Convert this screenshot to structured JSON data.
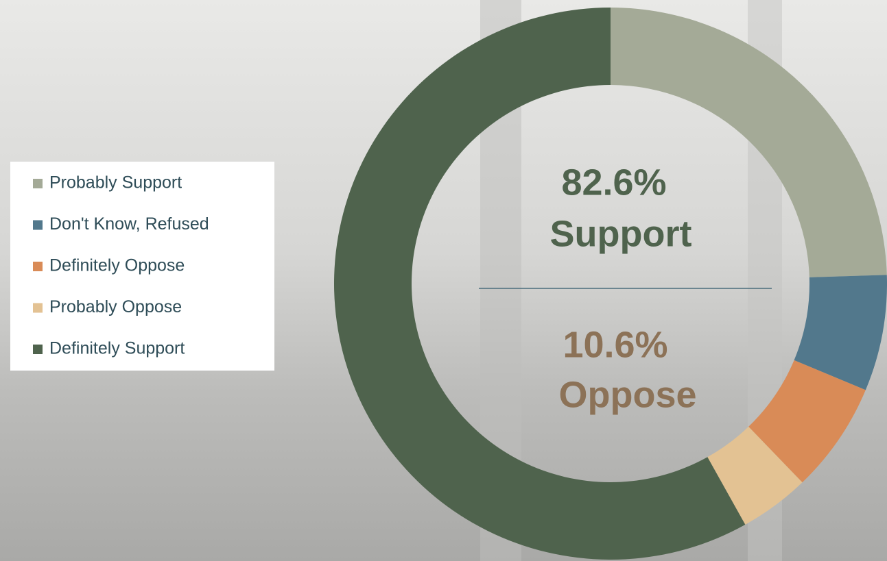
{
  "chart_data": {
    "type": "donut",
    "categories": [
      "Probably Support",
      "Don't Know, Refused",
      "Definitely Oppose",
      "Probably Oppose",
      "Definitely Support"
    ],
    "values": [
      24.5,
      6.8,
      6.5,
      4.1,
      58.1
    ],
    "colors": [
      "#a4aa97",
      "#52788c",
      "#d98b57",
      "#e3c293",
      "#4f634d"
    ],
    "legend": "left",
    "center_text": {
      "support_percent": "82.6%",
      "support_label": "Support",
      "oppose_percent": "10.6%",
      "oppose_label": "Oppose"
    }
  }
}
